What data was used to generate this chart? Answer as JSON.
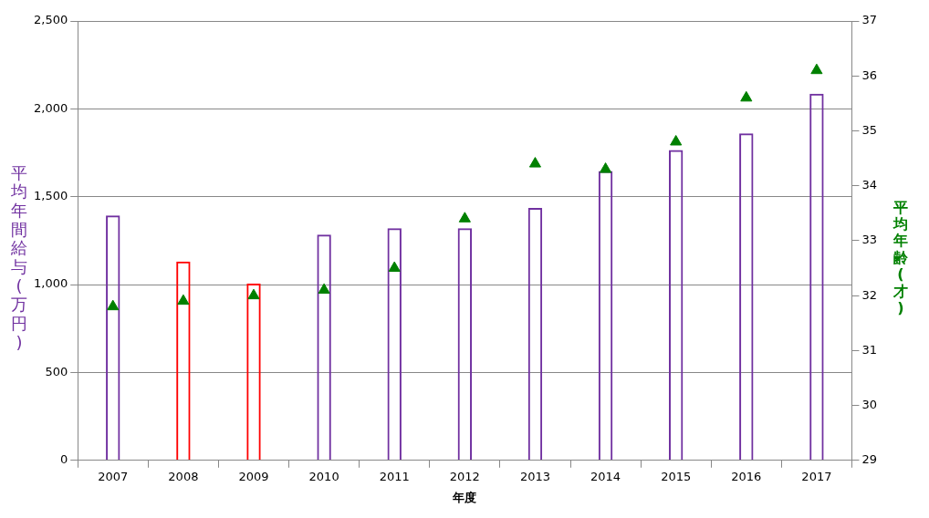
{
  "chart_data": {
    "type": "bar",
    "categories": [
      "2007",
      "2008",
      "2009",
      "2010",
      "2011",
      "2012",
      "2013",
      "2014",
      "2015",
      "2016",
      "2017"
    ],
    "xlabel": "年度",
    "ylabel": "平均年間給与(万円)",
    "y2label": "平均年齢(才)",
    "ylim": [
      0,
      2500
    ],
    "yticks": [
      {
        "value": 0,
        "label": "0"
      },
      {
        "value": 500,
        "label": "500"
      },
      {
        "value": 1000,
        "label": "1,000"
      },
      {
        "value": 1500,
        "label": "1,500"
      },
      {
        "value": 2000,
        "label": "2,000"
      },
      {
        "value": 2500,
        "label": "2,500"
      }
    ],
    "y2lim": [
      29,
      37
    ],
    "y2ticks": [
      29,
      30,
      31,
      32,
      33,
      34,
      35,
      36,
      37
    ],
    "grid": "y",
    "legend": false,
    "marker": "triangle",
    "series": [
      {
        "color": "#7030a0",
        "colors": [
          "#7030a0",
          "#ff0000",
          "#ff0000",
          "#7030a0",
          "#7030a0",
          "#7030a0",
          "#7030a0",
          "#7030a0",
          "#7030a0",
          "#7030a0",
          "#7030a0"
        ],
        "values": [
          1394,
          1132,
          1006,
          1284,
          1321,
          1321,
          1436,
          1646,
          1766,
          1861,
          2086
        ]
      },
      {
        "type": "scatter",
        "axis": "y2",
        "color": "#008000",
        "values": [
          31.8,
          31.9,
          32.0,
          32.1,
          32.5,
          33.4,
          34.4,
          34.3,
          34.8,
          35.6,
          36.1
        ]
      }
    ]
  }
}
